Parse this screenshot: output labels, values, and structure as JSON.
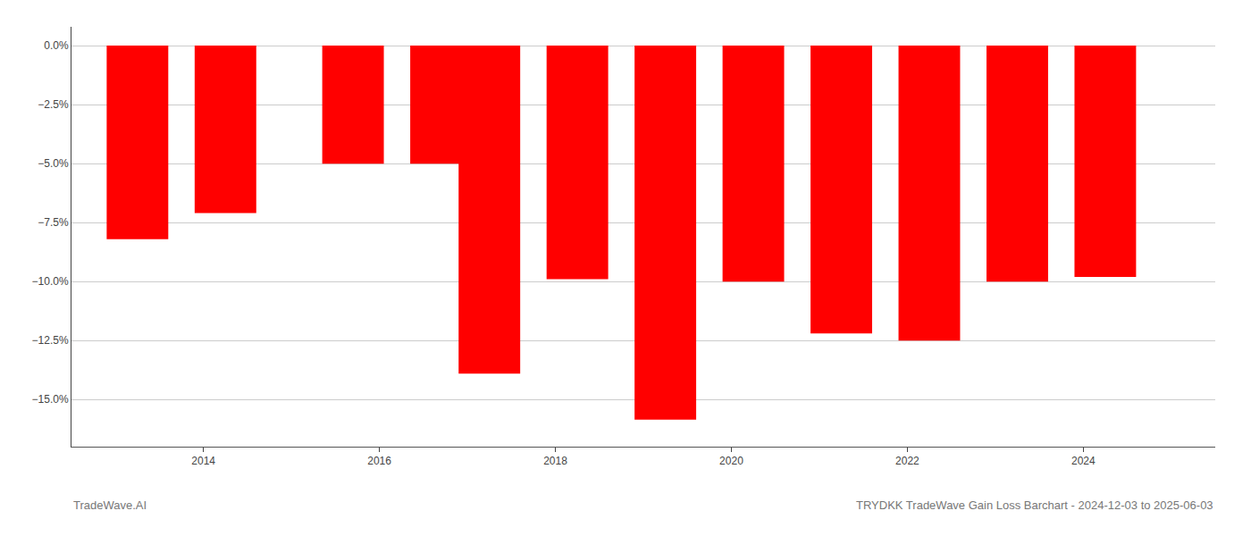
{
  "chart_data": {
    "type": "bar",
    "title": "TRYDKK TradeWave Gain Loss Barchart - 2024-12-03 to 2025-06-03",
    "annotations": [
      "TradeWave.AI"
    ],
    "x": [
      2013.25,
      2014.25,
      2015.7,
      2016.7,
      2017.25,
      2018.25,
      2019.25,
      2020.25,
      2021.25,
      2022.25,
      2023.25,
      2024.25
    ],
    "values": [
      -8.2,
      -7.1,
      -5.0,
      -5.0,
      -13.9,
      -9.9,
      -15.85,
      -10.0,
      -12.2,
      -12.5,
      -10.0,
      -9.8
    ],
    "color": "#ff0000",
    "xlim": [
      2012.5,
      2025.5
    ],
    "xticks": [
      2014,
      2016,
      2018,
      2020,
      2022,
      2024
    ],
    "ylim": [
      -17.0,
      0.8
    ],
    "yticks": [
      {
        "value": 0.0,
        "label": "0.0%"
      },
      {
        "value": -2.5,
        "label": "−2.5%"
      },
      {
        "value": -5.0,
        "label": "−5.0%"
      },
      {
        "value": -7.5,
        "label": "−7.5%"
      },
      {
        "value": -10.0,
        "label": "−10.0%"
      },
      {
        "value": -12.5,
        "label": "−12.5%"
      },
      {
        "value": -15.0,
        "label": "−15.0%"
      }
    ],
    "grid": true
  }
}
